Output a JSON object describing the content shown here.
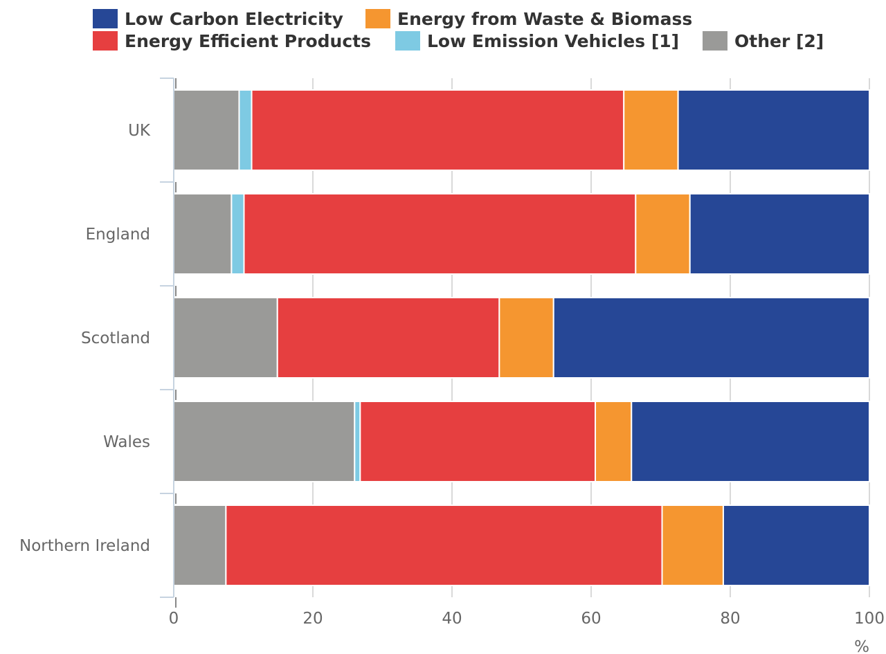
{
  "chart_data": {
    "type": "bar",
    "orientation": "horizontal",
    "stacked": true,
    "categories": [
      "UK",
      "England",
      "Scotland",
      "Wales",
      "Northern Ireland"
    ],
    "series": [
      {
        "name": "Other [2]",
        "color": "#9a9a98",
        "values": [
          9.4,
          8.3,
          14.9,
          26.0,
          7.5
        ]
      },
      {
        "name": "Low Emission Vehicles [1]",
        "color": "#7ecae3",
        "values": [
          1.8,
          1.8,
          0.0,
          0.8,
          0.0
        ]
      },
      {
        "name": "Energy Efficient Products",
        "color": "#e63f40",
        "values": [
          53.5,
          56.3,
          31.9,
          33.8,
          62.7
        ]
      },
      {
        "name": "Energy from Waste & Biomass",
        "color": "#f59630",
        "values": [
          7.8,
          7.8,
          7.8,
          5.2,
          8.8
        ]
      },
      {
        "name": "Low Carbon Electricity",
        "color": "#264796",
        "values": [
          27.5,
          25.8,
          45.4,
          34.2,
          21.0
        ]
      }
    ],
    "legend_order": [
      "Low Carbon Electricity",
      "Energy from Waste & Biomass",
      "Energy Efficient Products",
      "Low Emission Vehicles [1]",
      "Other [2]"
    ],
    "legend_placement": "top",
    "xlim": [
      0,
      100
    ],
    "xticks": [
      0,
      20,
      40,
      60,
      80,
      100
    ],
    "xlabel": "%",
    "grid": "vertical"
  }
}
